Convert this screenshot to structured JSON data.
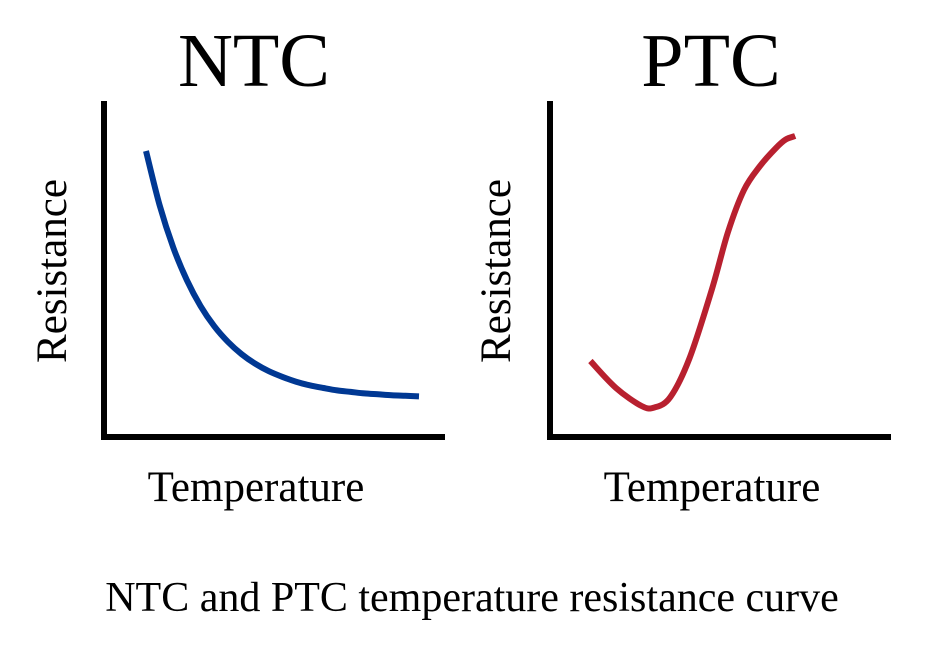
{
  "chart_data": [
    {
      "type": "line",
      "title": "NTC",
      "xlabel": "Temperature",
      "ylabel": "Resistance",
      "xlim": [
        0,
        10
      ],
      "ylim": [
        0,
        10
      ],
      "grid": false,
      "series": [
        {
          "color": "#003893",
          "x": [
            0,
            0.5,
            1,
            1.5,
            2,
            2.5,
            3,
            3.5,
            4,
            4.5,
            5,
            5.5,
            6,
            6.5,
            7,
            7.5,
            8,
            8.5,
            9,
            9.5,
            10
          ],
          "y": [
            9.5,
            7.69,
            6.28,
            5.19,
            4.33,
            3.66,
            3.14,
            2.73,
            2.41,
            2.16,
            1.97,
            1.81,
            1.69,
            1.6,
            1.52,
            1.47,
            1.42,
            1.39,
            1.36,
            1.34,
            1.32
          ]
        }
      ]
    },
    {
      "type": "line",
      "title": "PTC",
      "xlabel": "Temperature",
      "ylabel": "Resistance",
      "xlim": [
        0,
        10
      ],
      "ylim": [
        0,
        10
      ],
      "grid": false,
      "series": [
        {
          "color": "#B8202F",
          "x": [
            1.2,
            2,
            2.8,
            3.2,
            3.7,
            4.3,
            5,
            5.5,
            6,
            6.5,
            7,
            7.3,
            7.6
          ],
          "y": [
            2.5,
            1.6,
            1.0,
            0.95,
            1.3,
            2.6,
            4.9,
            6.8,
            8.2,
            9.0,
            9.6,
            9.88,
            10
          ]
        }
      ]
    }
  ],
  "caption": "NTC and PTC temperature resistance curve"
}
